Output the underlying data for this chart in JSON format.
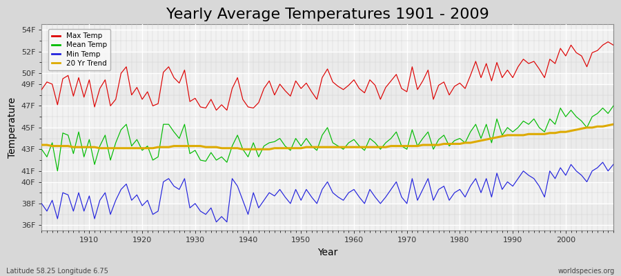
{
  "title": "Yearly Average Temperatures 1901 - 2009",
  "xlabel": "Year",
  "ylabel": "Temperature",
  "years_start": 1901,
  "years_end": 2009,
  "yticks": [
    36,
    38,
    40,
    41,
    43,
    45,
    47,
    49,
    50,
    52,
    54
  ],
  "ytick_labels": [
    "36F",
    "38F",
    "40F",
    "41F",
    "43F",
    "45F",
    "47F",
    "49F",
    "50F",
    "52F",
    "54F"
  ],
  "ylim": [
    35.5,
    54.5
  ],
  "xticks": [
    1910,
    1920,
    1930,
    1940,
    1950,
    1960,
    1970,
    1980,
    1990,
    2000
  ],
  "xlim": [
    1901,
    2009
  ],
  "background_color": "#d8d8d8",
  "plot_bg_color": "#f0f0f0",
  "grid_color": "#ffffff",
  "legend_items": [
    "Max Temp",
    "Mean Temp",
    "Min Temp",
    "20 Yr Trend"
  ],
  "line_colors": [
    "#dd0000",
    "#00bb00",
    "#2222dd",
    "#ddaa00"
  ],
  "footer_left": "Latitude 58.25 Longitude 6.75",
  "footer_right": "worldspecies.org",
  "title_fontsize": 16,
  "axis_label_fontsize": 10,
  "tick_fontsize": 8,
  "max_temps": [
    48.5,
    49.2,
    49.0,
    47.1,
    49.5,
    49.8,
    47.9,
    49.6,
    47.8,
    49.4,
    46.9,
    48.6,
    49.4,
    47.0,
    47.6,
    50.0,
    50.6,
    48.0,
    48.7,
    47.6,
    48.3,
    47.0,
    47.2,
    50.1,
    50.6,
    49.6,
    49.1,
    50.3,
    47.4,
    47.7,
    46.9,
    46.8,
    47.6,
    46.6,
    47.1,
    46.6,
    48.6,
    49.6,
    47.6,
    46.9,
    46.8,
    47.3,
    48.6,
    49.3,
    48.0,
    49.0,
    48.4,
    47.9,
    49.3,
    48.6,
    49.1,
    48.3,
    47.6,
    49.6,
    50.4,
    49.2,
    48.8,
    48.5,
    48.9,
    49.4,
    48.6,
    48.2,
    49.4,
    48.9,
    47.6,
    48.7,
    49.3,
    49.9,
    48.6,
    48.3,
    50.6,
    48.5,
    49.3,
    50.3,
    47.6,
    48.9,
    49.2,
    48.0,
    48.8,
    49.1,
    48.6,
    49.8,
    51.1,
    49.6,
    50.9,
    49.3,
    51.0,
    49.6,
    50.3,
    49.6,
    50.6,
    51.3,
    50.9,
    51.1,
    50.4,
    49.6,
    51.3,
    50.9,
    52.3,
    51.6,
    52.6,
    51.9,
    51.6,
    50.6,
    51.9,
    52.1,
    52.6,
    52.9,
    52.6
  ],
  "mean_temps": [
    43.0,
    42.3,
    43.6,
    41.0,
    44.5,
    44.3,
    42.6,
    44.6,
    42.3,
    43.9,
    41.6,
    43.3,
    44.3,
    42.0,
    43.6,
    44.8,
    45.3,
    43.3,
    43.9,
    42.9,
    43.3,
    42.0,
    42.3,
    45.3,
    45.3,
    44.6,
    44.0,
    45.3,
    42.6,
    42.9,
    42.0,
    41.9,
    42.7,
    42.0,
    42.3,
    41.8,
    43.3,
    44.3,
    43.0,
    42.3,
    43.6,
    42.3,
    43.3,
    43.6,
    43.7,
    44.0,
    43.3,
    42.9,
    44.0,
    43.3,
    44.0,
    43.3,
    42.9,
    44.3,
    45.0,
    43.6,
    43.3,
    43.0,
    43.6,
    43.9,
    43.3,
    42.9,
    44.0,
    43.6,
    43.0,
    43.6,
    44.0,
    44.6,
    43.3,
    43.0,
    44.8,
    43.3,
    44.0,
    44.6,
    43.0,
    43.9,
    44.3,
    43.3,
    43.8,
    44.0,
    43.6,
    44.6,
    45.3,
    44.0,
    45.3,
    43.6,
    45.8,
    44.3,
    45.0,
    44.6,
    45.0,
    45.6,
    45.3,
    45.8,
    45.0,
    44.6,
    45.8,
    45.3,
    46.8,
    46.0,
    46.6,
    46.0,
    45.6,
    45.0,
    46.0,
    46.3,
    46.8,
    46.3,
    47.0
  ],
  "min_temps": [
    38.0,
    37.3,
    38.3,
    36.6,
    39.0,
    38.8,
    37.3,
    39.0,
    37.3,
    38.7,
    36.6,
    38.3,
    39.0,
    37.0,
    38.3,
    39.3,
    39.8,
    38.3,
    38.8,
    37.8,
    38.3,
    37.0,
    37.3,
    40.0,
    40.3,
    39.6,
    39.3,
    40.3,
    37.6,
    38.0,
    37.3,
    37.0,
    37.6,
    36.3,
    36.8,
    36.3,
    40.3,
    39.6,
    38.3,
    37.0,
    39.0,
    37.6,
    38.3,
    39.0,
    38.7,
    39.3,
    38.6,
    38.0,
    39.3,
    38.3,
    39.3,
    38.6,
    38.0,
    39.3,
    40.0,
    39.0,
    38.6,
    38.3,
    39.0,
    39.3,
    38.6,
    38.0,
    39.3,
    38.6,
    38.0,
    38.6,
    39.3,
    40.0,
    38.6,
    38.0,
    40.3,
    38.3,
    39.3,
    40.3,
    38.3,
    39.3,
    39.6,
    38.3,
    39.0,
    39.3,
    38.6,
    39.6,
    40.3,
    39.0,
    40.3,
    38.6,
    40.8,
    39.3,
    40.0,
    39.6,
    40.3,
    41.0,
    40.6,
    40.3,
    39.6,
    38.6,
    41.0,
    40.3,
    41.3,
    40.6,
    41.6,
    41.0,
    40.6,
    40.0,
    41.0,
    41.3,
    41.8,
    41.0,
    41.6
  ],
  "trend_values": [
    43.4,
    43.4,
    43.3,
    43.3,
    43.3,
    43.3,
    43.2,
    43.2,
    43.2,
    43.2,
    43.2,
    43.1,
    43.1,
    43.1,
    43.1,
    43.1,
    43.1,
    43.1,
    43.1,
    43.1,
    43.1,
    43.1,
    43.2,
    43.2,
    43.2,
    43.3,
    43.3,
    43.3,
    43.3,
    43.3,
    43.3,
    43.2,
    43.2,
    43.2,
    43.1,
    43.1,
    43.1,
    43.1,
    43.0,
    43.0,
    43.0,
    43.0,
    43.0,
    43.0,
    43.1,
    43.1,
    43.1,
    43.1,
    43.1,
    43.1,
    43.2,
    43.2,
    43.2,
    43.2,
    43.2,
    43.2,
    43.2,
    43.2,
    43.2,
    43.2,
    43.2,
    43.2,
    43.2,
    43.2,
    43.2,
    43.2,
    43.3,
    43.3,
    43.3,
    43.3,
    43.3,
    43.3,
    43.4,
    43.4,
    43.4,
    43.4,
    43.5,
    43.5,
    43.5,
    43.5,
    43.6,
    43.6,
    43.7,
    43.8,
    43.9,
    44.0,
    44.1,
    44.2,
    44.3,
    44.3,
    44.3,
    44.3,
    44.4,
    44.4,
    44.4,
    44.4,
    44.5,
    44.5,
    44.6,
    44.6,
    44.7,
    44.8,
    44.9,
    45.0,
    45.0,
    45.1,
    45.1,
    45.2,
    45.3
  ]
}
